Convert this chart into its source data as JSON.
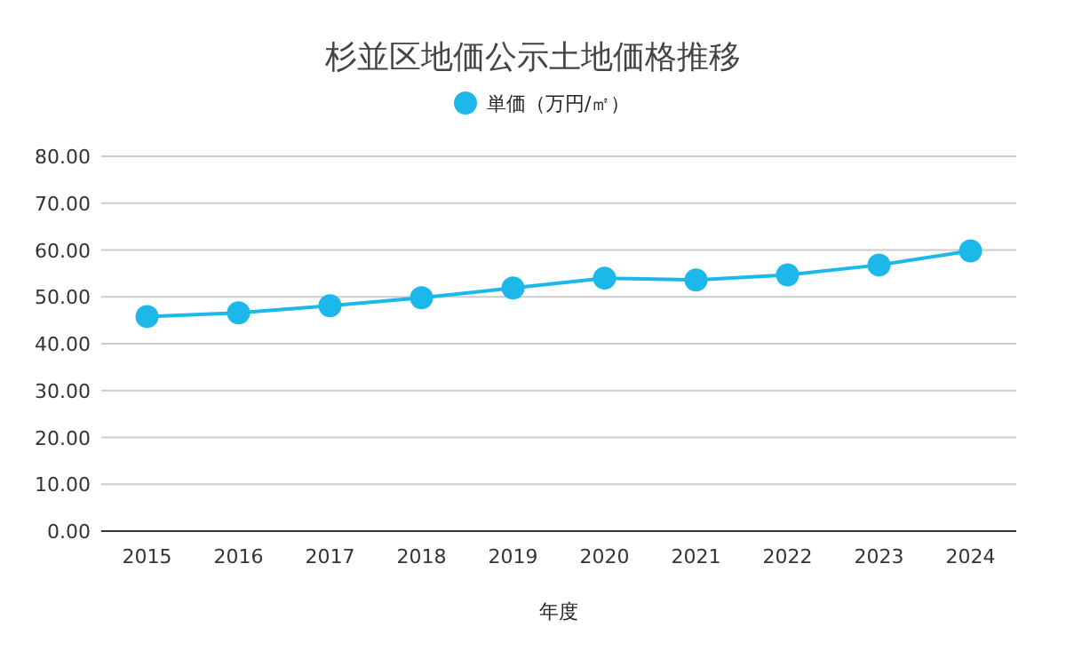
{
  "chart_data": {
    "type": "line",
    "title": "杉並区地価公示土地価格推移",
    "xlabel": "年度",
    "categories": [
      "2015",
      "2016",
      "2017",
      "2018",
      "2019",
      "2020",
      "2021",
      "2022",
      "2023",
      "2024"
    ],
    "series": [
      {
        "name": "単価（万円/㎡）",
        "color": "#1cb8ea",
        "values": [
          45.8,
          46.6,
          48.1,
          49.8,
          51.9,
          54.0,
          53.6,
          54.7,
          56.8,
          59.8
        ]
      }
    ],
    "ylim": [
      0,
      80
    ],
    "yticks": [
      {
        "value": 0,
        "label": "0.00"
      },
      {
        "value": 10,
        "label": "10.00"
      },
      {
        "value": 20,
        "label": "20.00"
      },
      {
        "value": 30,
        "label": "30.00"
      },
      {
        "value": 40,
        "label": "40.00"
      },
      {
        "value": 50,
        "label": "50.00"
      },
      {
        "value": 60,
        "label": "60.00"
      },
      {
        "value": 70,
        "label": "70.00"
      },
      {
        "value": 80,
        "label": "80.00"
      }
    ],
    "grid": "y",
    "legend": "top",
    "marker": "circle",
    "line_style": "solid"
  }
}
